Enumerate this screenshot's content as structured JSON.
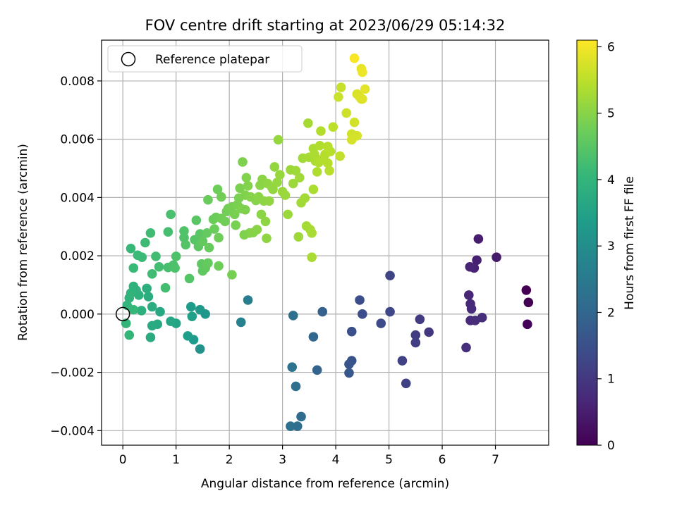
{
  "chart_data": {
    "type": "scatter",
    "title": "FOV centre drift starting at 2023/06/29 05:14:32",
    "xlabel": "Angular distance from reference (arcmin)",
    "ylabel": "Rotation from reference (arcmin)",
    "xlim": [
      -0.4,
      8.0
    ],
    "ylim": [
      -0.0045,
      0.0094
    ],
    "x_ticks": [
      0,
      1,
      2,
      3,
      4,
      5,
      6,
      7
    ],
    "x_tick_labels": [
      "0",
      "1",
      "2",
      "3",
      "4",
      "5",
      "6",
      "7"
    ],
    "y_ticks": [
      -0.004,
      -0.002,
      0.0,
      0.002,
      0.004,
      0.006,
      0.008
    ],
    "y_tick_labels": [
      "−0.004",
      "−0.002",
      "0.000",
      "0.002",
      "0.004",
      "0.006",
      "0.008"
    ],
    "grid": true,
    "legend": {
      "placement": "upper-left",
      "entries": [
        "Reference platepar"
      ]
    },
    "reference_point": {
      "x": 0.0,
      "y": 0.0,
      "label": "Reference platepar"
    },
    "colorbar": {
      "label": "Hours from first FF file",
      "colormap": "viridis",
      "range": [
        0,
        6.1
      ],
      "ticks": [
        0,
        1,
        2,
        3,
        4,
        5,
        6
      ],
      "tick_labels": [
        "0",
        "1",
        "2",
        "3",
        "4",
        "5",
        "6"
      ]
    },
    "series": [
      {
        "points": [
          [
            7.58,
            0.00082,
            0.0
          ],
          [
            7.62,
            0.0004,
            0.02
          ],
          [
            7.6,
            -0.00035,
            0.04
          ],
          [
            7.02,
            0.00195,
            0.45
          ],
          [
            6.68,
            0.00258,
            0.5
          ],
          [
            6.65,
            0.00185,
            0.55
          ],
          [
            6.6,
            0.00158,
            0.58
          ],
          [
            6.52,
            0.00162,
            0.62
          ],
          [
            6.5,
            0.00065,
            0.66
          ],
          [
            6.53,
            0.00035,
            0.7
          ],
          [
            6.55,
            0.00018,
            0.72
          ],
          [
            6.53,
            -0.00022,
            0.74
          ],
          [
            6.62,
            -0.00022,
            0.77
          ],
          [
            6.75,
            -0.00012,
            0.8
          ],
          [
            6.45,
            -0.00115,
            0.83
          ],
          [
            5.75,
            -0.00062,
            1.0
          ],
          [
            5.58,
            -0.00018,
            1.05
          ],
          [
            5.5,
            -0.00072,
            1.1
          ],
          [
            5.5,
            -0.00098,
            1.12
          ],
          [
            5.32,
            -0.00238,
            1.15
          ],
          [
            5.25,
            -0.0016,
            1.18
          ],
          [
            5.02,
            0.00132,
            1.25
          ],
          [
            5.02,
            8e-05,
            1.3
          ],
          [
            4.85,
            -0.00032,
            1.35
          ],
          [
            4.5,
            0.0,
            1.42
          ],
          [
            4.45,
            0.00048,
            1.45
          ],
          [
            4.3,
            -0.0006,
            1.5
          ],
          [
            4.3,
            -0.0016,
            1.55
          ],
          [
            4.25,
            -0.00172,
            1.6
          ],
          [
            4.25,
            -0.00202,
            1.65
          ],
          [
            3.75,
            8e-05,
            1.9
          ],
          [
            3.65,
            -0.00192,
            1.95
          ],
          [
            3.58,
            -0.00078,
            2.0
          ],
          [
            3.35,
            -0.00352,
            2.15
          ],
          [
            3.28,
            -0.00385,
            2.2
          ],
          [
            3.25,
            -0.00248,
            2.22
          ],
          [
            3.2,
            -5e-05,
            2.25
          ],
          [
            3.15,
            -0.00385,
            2.27
          ],
          [
            3.18,
            -0.00182,
            2.3
          ],
          [
            2.35,
            0.00048,
            2.6
          ],
          [
            2.22,
            -0.00028,
            2.7
          ],
          [
            1.45,
            -0.0012,
            3.1
          ],
          [
            1.55,
            0.0,
            3.2
          ],
          [
            1.45,
            0.00015,
            3.25
          ],
          [
            1.33,
            -0.00088,
            3.3
          ],
          [
            1.28,
            0.00025,
            3.35
          ],
          [
            1.22,
            -0.00075,
            3.4
          ],
          [
            1.3,
            -8e-05,
            3.45
          ],
          [
            1.0,
            -0.00032,
            3.55
          ],
          [
            0.9,
            -0.00025,
            3.6
          ],
          [
            0.7,
            8e-05,
            3.65
          ],
          [
            0.65,
            -0.00035,
            3.7
          ],
          [
            0.55,
            -0.0004,
            3.72
          ],
          [
            0.52,
            -0.0008,
            3.75
          ],
          [
            0.55,
            0.00025,
            3.78
          ],
          [
            0.48,
            0.0006,
            3.8
          ],
          [
            0.45,
            0.00088,
            3.82
          ],
          [
            0.35,
            0.00012,
            3.85
          ],
          [
            0.3,
            0.00065,
            3.88
          ],
          [
            0.25,
            0.00082,
            3.9
          ],
          [
            0.2,
            0.00095,
            3.92
          ],
          [
            0.15,
            0.00072,
            3.95
          ],
          [
            0.12,
            0.00055,
            3.97
          ],
          [
            0.08,
            0.0003,
            4.0
          ],
          [
            0.06,
            -0.00032,
            4.02
          ],
          [
            0.12,
            -0.00072,
            4.05
          ],
          [
            0.2,
            0.00015,
            4.08
          ],
          [
            0.15,
            0.00225,
            4.1
          ],
          [
            0.2,
            0.00158,
            4.12
          ],
          [
            0.28,
            0.00202,
            4.14
          ],
          [
            0.36,
            0.00195,
            4.15
          ],
          [
            0.42,
            0.00245,
            4.17
          ],
          [
            0.52,
            0.00278,
            4.19
          ],
          [
            0.55,
            0.00138,
            4.2
          ],
          [
            0.62,
            0.00198,
            4.22
          ],
          [
            0.68,
            0.00162,
            4.24
          ],
          [
            0.8,
            0.0009,
            4.26
          ],
          [
            0.85,
            0.00282,
            4.28
          ],
          [
            0.85,
            0.0016,
            4.3
          ],
          [
            0.9,
            0.00342,
            4.32
          ],
          [
            0.95,
            0.00168,
            4.34
          ],
          [
            0.98,
            0.00158,
            4.36
          ],
          [
            1.0,
            0.00198,
            4.38
          ],
          [
            1.15,
            0.00262,
            4.4
          ],
          [
            1.15,
            0.00285,
            4.42
          ],
          [
            1.18,
            0.00238,
            4.44
          ],
          [
            1.25,
            0.00122,
            4.46
          ],
          [
            1.35,
            0.00255,
            4.48
          ],
          [
            1.38,
            0.00322,
            4.5
          ],
          [
            1.45,
            0.00275,
            4.52
          ],
          [
            1.42,
            0.00232,
            4.54
          ],
          [
            1.48,
            0.00172,
            4.56
          ],
          [
            1.5,
            0.00148,
            4.58
          ],
          [
            1.55,
            0.00158,
            4.6
          ],
          [
            1.5,
            0.0025,
            4.62
          ],
          [
            1.58,
            0.00278,
            4.63
          ],
          [
            1.6,
            0.00175,
            4.64
          ],
          [
            1.62,
            0.00228,
            4.66
          ],
          [
            1.6,
            0.00392,
            4.68
          ],
          [
            1.7,
            0.00325,
            4.7
          ],
          [
            1.72,
            0.00292,
            4.71
          ],
          [
            1.75,
            0.00332,
            4.72
          ],
          [
            1.78,
            0.00428,
            4.73
          ],
          [
            1.8,
            0.00165,
            4.74
          ],
          [
            1.8,
            0.00262,
            4.75
          ],
          [
            1.85,
            0.00328,
            4.76
          ],
          [
            1.85,
            0.00402,
            4.77
          ],
          [
            1.92,
            0.00318,
            4.78
          ],
          [
            1.95,
            0.00352,
            4.79
          ],
          [
            1.98,
            0.00362,
            4.8
          ],
          [
            2.05,
            0.00135,
            4.82
          ],
          [
            2.05,
            0.00368,
            4.83
          ],
          [
            2.1,
            0.00342,
            4.84
          ],
          [
            2.12,
            0.00305,
            4.85
          ],
          [
            2.15,
            0.00375,
            4.86
          ],
          [
            2.18,
            0.00398,
            4.87
          ],
          [
            2.2,
            0.00432,
            4.88
          ],
          [
            2.22,
            0.00362,
            4.89
          ],
          [
            2.25,
            0.00522,
            4.9
          ],
          [
            2.28,
            0.00272,
            4.91
          ],
          [
            2.3,
            0.00358,
            4.92
          ],
          [
            2.3,
            0.00408,
            4.93
          ],
          [
            2.32,
            0.00468,
            4.94
          ],
          [
            2.35,
            0.0044,
            4.95
          ],
          [
            2.38,
            0.00278,
            4.96
          ],
          [
            2.4,
            0.00402,
            4.97
          ],
          [
            2.45,
            0.0028,
            4.98
          ],
          [
            2.5,
            0.0039,
            4.99
          ],
          [
            2.52,
            0.0029,
            5.0
          ],
          [
            2.55,
            0.00402,
            5.01
          ],
          [
            2.58,
            0.00442,
            5.02
          ],
          [
            2.6,
            0.00342,
            5.03
          ],
          [
            2.62,
            0.00462,
            5.04
          ],
          [
            2.65,
            0.00388,
            5.05
          ],
          [
            2.68,
            0.00318,
            5.06
          ],
          [
            2.7,
            0.0026,
            5.07
          ],
          [
            2.72,
            0.00448,
            5.08
          ],
          [
            2.75,
            0.00388,
            5.09
          ],
          [
            2.8,
            0.00435,
            5.1
          ],
          [
            2.82,
            0.00428,
            5.11
          ],
          [
            2.85,
            0.00505,
            5.12
          ],
          [
            2.9,
            0.00452,
            5.13
          ],
          [
            2.92,
            0.00598,
            5.14
          ],
          [
            2.95,
            0.00478,
            5.15
          ],
          [
            3.0,
            0.0042,
            5.16
          ],
          [
            3.05,
            0.00408,
            5.17
          ],
          [
            3.1,
            0.00342,
            5.18
          ],
          [
            3.15,
            0.00495,
            5.19
          ],
          [
            3.2,
            0.00448,
            5.2
          ],
          [
            3.25,
            0.00492,
            5.21
          ],
          [
            3.3,
            0.00265,
            5.22
          ],
          [
            3.32,
            0.00468,
            5.23
          ],
          [
            3.35,
            0.00382,
            5.24
          ],
          [
            3.38,
            0.00535,
            5.25
          ],
          [
            3.42,
            0.00398,
            5.26
          ],
          [
            3.45,
            0.00302,
            5.27
          ],
          [
            3.48,
            0.00655,
            5.28
          ],
          [
            3.5,
            0.00538,
            5.29
          ],
          [
            3.52,
            0.0029,
            5.3
          ],
          [
            3.55,
            0.00278,
            5.31
          ],
          [
            3.55,
            0.00195,
            5.32
          ],
          [
            3.58,
            0.00568,
            5.33
          ],
          [
            3.58,
            0.00428,
            5.34
          ],
          [
            3.6,
            0.00548,
            5.35
          ],
          [
            3.62,
            0.00525,
            5.36
          ],
          [
            3.65,
            0.00488,
            5.37
          ],
          [
            3.68,
            0.0052,
            5.38
          ],
          [
            3.7,
            0.00578,
            5.39
          ],
          [
            3.72,
            0.00628,
            5.4
          ],
          [
            3.75,
            0.00532,
            5.41
          ],
          [
            3.8,
            0.00548,
            5.42
          ],
          [
            3.85,
            0.00518,
            5.43
          ],
          [
            3.85,
            0.00575,
            5.44
          ],
          [
            3.88,
            0.00492,
            5.45
          ],
          [
            3.9,
            0.00558,
            5.46
          ],
          [
            3.95,
            0.00642,
            5.5
          ],
          [
            4.08,
            0.00542,
            5.55
          ],
          [
            4.1,
            0.00778,
            5.6
          ],
          [
            4.05,
            0.00745,
            5.62
          ],
          [
            4.2,
            0.0069,
            5.65
          ],
          [
            4.3,
            0.00618,
            5.68
          ],
          [
            4.35,
            0.00658,
            5.7
          ],
          [
            4.4,
            0.00612,
            5.72
          ],
          [
            4.3,
            0.00598,
            5.73
          ],
          [
            4.4,
            0.00755,
            5.75
          ],
          [
            4.45,
            0.00745,
            5.78
          ],
          [
            4.48,
            0.00738,
            5.8
          ],
          [
            4.5,
            0.00738,
            5.82
          ],
          [
            4.55,
            0.00772,
            5.85
          ],
          [
            4.48,
            0.00842,
            5.9
          ],
          [
            4.5,
            0.0083,
            5.95
          ],
          [
            4.35,
            0.00878,
            6.05
          ]
        ]
      }
    ]
  }
}
